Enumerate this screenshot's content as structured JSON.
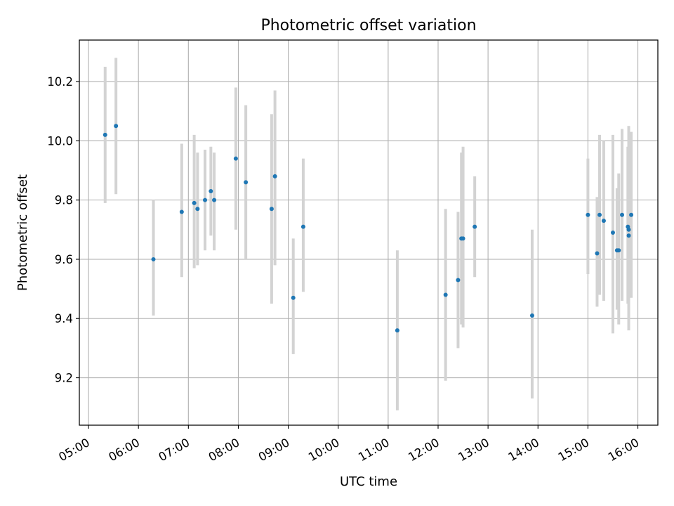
{
  "chart_data": {
    "type": "scatter",
    "title": "Photometric offset variation",
    "xlabel": "UTC time",
    "ylabel": "Photometric offset",
    "x_tick_labels": [
      "05:00",
      "06:00",
      "07:00",
      "08:00",
      "09:00",
      "10:00",
      "11:00",
      "12:00",
      "13:00",
      "14:00",
      "15:00",
      "16:00"
    ],
    "x_tick_values": [
      "05:00",
      "06:00",
      "07:00",
      "08:00",
      "09:00",
      "10:00",
      "11:00",
      "12:00",
      "13:00",
      "14:00",
      "15:00",
      "16:00"
    ],
    "y_ticks": [
      9.2,
      9.4,
      9.6,
      9.8,
      10.0,
      10.2
    ],
    "y_tick_labels": [
      "9.2",
      "9.4",
      "9.6",
      "9.8",
      "10.0",
      "10.2"
    ],
    "xlim": [
      "04:49",
      "16:24"
    ],
    "ylim": [
      9.04,
      10.34
    ],
    "grid": true,
    "colors": {
      "point": "#1f77b4",
      "errorbar": "#d3d3d3",
      "grid": "#b0b0b0"
    },
    "points": [
      {
        "x": "05:20",
        "y": 10.02,
        "low": 9.79,
        "high": 10.25
      },
      {
        "x": "05:33",
        "y": 10.05,
        "low": 9.82,
        "high": 10.28
      },
      {
        "x": "06:18",
        "y": 9.6,
        "low": 9.41,
        "high": 9.8
      },
      {
        "x": "06:52",
        "y": 9.76,
        "low": 9.54,
        "high": 9.99
      },
      {
        "x": "07:07",
        "y": 9.79,
        "low": 9.57,
        "high": 10.02
      },
      {
        "x": "07:11",
        "y": 9.77,
        "low": 9.58,
        "high": 9.96
      },
      {
        "x": "07:20",
        "y": 9.8,
        "low": 9.63,
        "high": 9.97
      },
      {
        "x": "07:27",
        "y": 9.83,
        "low": 9.68,
        "high": 9.98
      },
      {
        "x": "07:31",
        "y": 9.8,
        "low": 9.63,
        "high": 9.96
      },
      {
        "x": "07:57",
        "y": 9.94,
        "low": 9.7,
        "high": 10.18
      },
      {
        "x": "08:09",
        "y": 9.86,
        "low": 9.6,
        "high": 10.12
      },
      {
        "x": "08:40",
        "y": 9.77,
        "low": 9.45,
        "high": 10.09
      },
      {
        "x": "08:44",
        "y": 9.88,
        "low": 9.58,
        "high": 10.17
      },
      {
        "x": "09:06",
        "y": 9.47,
        "low": 9.28,
        "high": 9.67
      },
      {
        "x": "09:18",
        "y": 9.71,
        "low": 9.49,
        "high": 9.94
      },
      {
        "x": "11:11",
        "y": 9.36,
        "low": 9.09,
        "high": 9.63
      },
      {
        "x": "12:09",
        "y": 9.48,
        "low": 9.19,
        "high": 9.77
      },
      {
        "x": "12:24",
        "y": 9.53,
        "low": 9.3,
        "high": 9.76
      },
      {
        "x": "12:28",
        "y": 9.67,
        "low": 9.38,
        "high": 9.96
      },
      {
        "x": "12:30",
        "y": 9.67,
        "low": 9.37,
        "high": 9.98
      },
      {
        "x": "12:44",
        "y": 9.71,
        "low": 9.54,
        "high": 9.88
      },
      {
        "x": "13:53",
        "y": 9.41,
        "low": 9.13,
        "high": 9.7
      },
      {
        "x": "15:00",
        "y": 9.75,
        "low": 9.55,
        "high": 9.94
      },
      {
        "x": "15:11",
        "y": 9.62,
        "low": 9.44,
        "high": 9.81
      },
      {
        "x": "15:14",
        "y": 9.75,
        "low": 9.48,
        "high": 10.02
      },
      {
        "x": "15:19",
        "y": 9.73,
        "low": 9.46,
        "high": 10.0
      },
      {
        "x": "15:30",
        "y": 9.69,
        "low": 9.35,
        "high": 10.02
      },
      {
        "x": "15:35",
        "y": 9.63,
        "low": 9.43,
        "high": 9.84
      },
      {
        "x": "15:37",
        "y": 9.63,
        "low": 9.38,
        "high": 9.89
      },
      {
        "x": "15:41",
        "y": 9.75,
        "low": 9.46,
        "high": 10.04
      },
      {
        "x": "15:48",
        "y": 9.71,
        "low": 9.45,
        "high": 9.98
      },
      {
        "x": "15:49",
        "y": 9.68,
        "low": 9.36,
        "high": 10.0
      },
      {
        "x": "15:49",
        "y": 9.7,
        "low": 9.37,
        "high": 10.05
      },
      {
        "x": "15:52",
        "y": 9.75,
        "low": 9.47,
        "high": 10.03
      }
    ]
  }
}
